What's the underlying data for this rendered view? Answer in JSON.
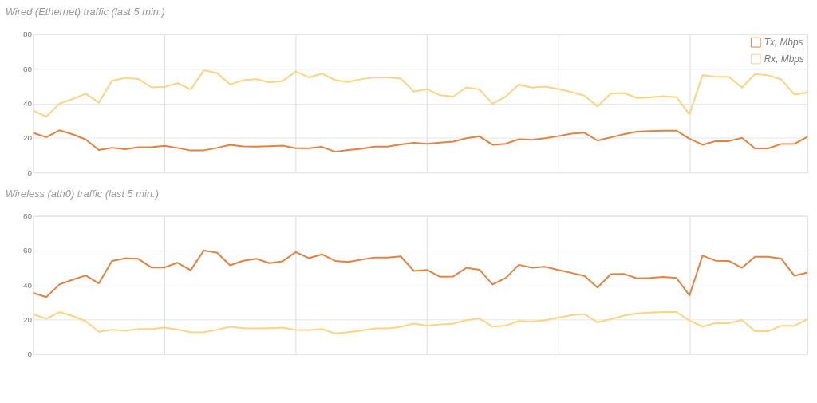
{
  "chart_data": [
    {
      "type": "line",
      "title": "Wired (Ethernet) traffic (last 5 min.)",
      "categories": [
        null,
        null,
        null,
        null,
        null,
        null,
        null,
        null,
        null,
        null,
        null,
        null,
        null,
        null,
        null,
        null,
        null,
        null,
        null,
        null,
        null,
        null,
        null,
        null,
        null,
        null,
        null,
        null,
        null,
        null,
        null,
        null,
        null,
        null,
        null,
        null,
        null,
        null,
        null,
        null,
        null,
        null,
        null,
        null,
        null,
        null,
        null,
        null,
        null,
        null,
        null,
        null,
        null,
        null,
        null,
        null,
        null,
        null,
        null,
        null
      ],
      "series": [
        {
          "name": "Tx, Mbps",
          "color": "#e5813e",
          "values": [
            22.9,
            20.4,
            24.4,
            22.1,
            19.1,
            13,
            14.3,
            13.4,
            14.6,
            14.6,
            15.4,
            14.2,
            12.7,
            12.8,
            14.2,
            16,
            15.1,
            14.9,
            15.2,
            15.5,
            14,
            14,
            14.8,
            12,
            13,
            13.7,
            14.9,
            14.9,
            16.2,
            17.1,
            16.6,
            17.2,
            17.8,
            19.8,
            20.9,
            16,
            16.6,
            19.2,
            18.9,
            19.8,
            21,
            22.4,
            23,
            18.4,
            20.3,
            22.1,
            23.6,
            23.9,
            24.2,
            24.2,
            19.5,
            16,
            18.1,
            18.1,
            20,
            13.9,
            13.9,
            16.5,
            16.5,
            20.6
          ]
        },
        {
          "name": "Rx, Mbps",
          "color": "#fed37f",
          "values": [
            35.8,
            32.3,
            39.8,
            42.5,
            45.6,
            40.4,
            53,
            54.7,
            54.1,
            49.2,
            49.5,
            51.7,
            48,
            59.1,
            57.5,
            50.9,
            53.4,
            54,
            52.1,
            52.9,
            58.4,
            55,
            57.2,
            53.4,
            52.3,
            54,
            55,
            55,
            54.3,
            46.8,
            48.2,
            44.7,
            43.9,
            49.2,
            48,
            39.8,
            43.9,
            50.8,
            49.1,
            49.7,
            48.3,
            46.6,
            44.4,
            38.3,
            45.6,
            46,
            43.1,
            43.4,
            44.1,
            43.6,
            33.7,
            56.3,
            55.3,
            55.3,
            49.1,
            56.9,
            56.2,
            53.8,
            45.1,
            46.3
          ]
        }
      ],
      "ylim": [
        0,
        80
      ],
      "yticks": [
        0,
        20,
        40,
        60,
        80
      ],
      "grid": true,
      "legend": "top right",
      "tick_labels": "y",
      "marker": "none",
      "line_style": "solid"
    },
    {
      "type": "line",
      "title": "Wireless (ath0) traffic (last 5 min.)",
      "categories": [
        null,
        null,
        null,
        null,
        null,
        null,
        null,
        null,
        null,
        null,
        null,
        null,
        null,
        null,
        null,
        null,
        null,
        null,
        null,
        null,
        null,
        null,
        null,
        null,
        null,
        null,
        null,
        null,
        null,
        null,
        null,
        null,
        null,
        null,
        null,
        null,
        null,
        null,
        null,
        null,
        null,
        null,
        null,
        null,
        null,
        null,
        null,
        null,
        null,
        null,
        null,
        null,
        null,
        null,
        null,
        null,
        null,
        null,
        null,
        null
      ],
      "series": [
        {
          "name": "Tx, Mbps",
          "color": "#e5813e",
          "values": [
            35.5,
            33.1,
            40.4,
            43.1,
            45.6,
            41,
            54,
            55.5,
            55.2,
            50.2,
            50.2,
            52.9,
            48.6,
            60,
            58.8,
            51.4,
            54.1,
            55.2,
            52.7,
            53.7,
            59.1,
            55.6,
            57.8,
            54,
            53.4,
            54.7,
            55.9,
            55.9,
            56.6,
            48.2,
            48.8,
            44.8,
            45,
            50,
            48.9,
            40.4,
            44.1,
            51.7,
            50,
            50.6,
            48.8,
            47.1,
            45.3,
            38.6,
            46.3,
            46.5,
            43.9,
            44.1,
            44.7,
            44.2,
            34,
            57,
            54.1,
            54,
            50,
            56.4,
            56.4,
            55.3,
            45.4,
            47.3
          ]
        },
        {
          "name": "Rx, Mbps",
          "color": "#fed37f",
          "values": [
            23,
            20.6,
            24.4,
            22.1,
            19.1,
            13,
            14.2,
            13.6,
            14.6,
            14.6,
            15.4,
            14.3,
            12.7,
            12.8,
            14.2,
            15.9,
            15.1,
            14.9,
            15.1,
            15.4,
            14,
            13.9,
            14.6,
            12,
            12.8,
            13.7,
            14.9,
            14.9,
            15.9,
            17.7,
            16.6,
            17.2,
            17.7,
            19.7,
            20.7,
            16,
            16.6,
            19.2,
            18.9,
            19.7,
            21.2,
            22.6,
            23.2,
            18.4,
            20.3,
            22.3,
            23.6,
            24.1,
            24.4,
            24.4,
            19.5,
            16,
            18,
            18,
            19.8,
            13.3,
            13.3,
            16.5,
            16.5,
            20.3
          ]
        }
      ],
      "ylim": [
        0,
        80
      ],
      "yticks": [
        0,
        20,
        40,
        60,
        80
      ],
      "grid": true,
      "legend": "top right",
      "tick_labels": "y",
      "marker": "none",
      "line_style": "solid"
    }
  ]
}
